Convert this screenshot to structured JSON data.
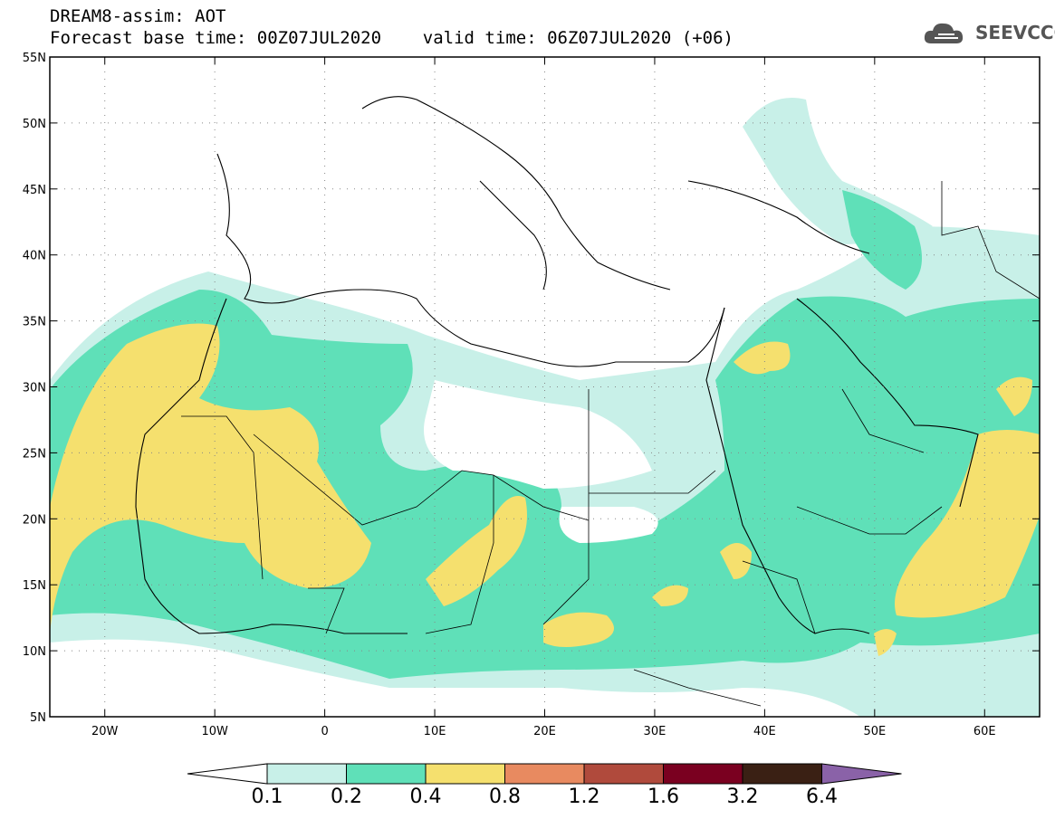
{
  "header": {
    "line1": "DREAM8-assim: AOT",
    "line2": "Forecast base time: 00Z07JUL2020    valid time: 06Z07JUL2020 (+06)"
  },
  "logo": {
    "text": "SEEVCCC",
    "icon": "cloud-icon",
    "color": "#555555"
  },
  "map": {
    "lat_ticks": [
      "55N",
      "50N",
      "45N",
      "40N",
      "35N",
      "30N",
      "25N",
      "20N",
      "15N",
      "10N",
      "5N"
    ],
    "lon_ticks": [
      "20W",
      "10W",
      "0",
      "10E",
      "20E",
      "30E",
      "40E",
      "50E",
      "60E"
    ],
    "lat_range": [
      5,
      55
    ],
    "lon_range": [
      -25,
      65
    ],
    "grid": "dotted"
  },
  "colorbar": {
    "labels": [
      "0.1",
      "0.2",
      "0.4",
      "0.8",
      "1.2",
      "1.6",
      "3.2",
      "6.4"
    ],
    "colors": [
      "#c8f0e8",
      "#5fe0b8",
      "#f5e06e",
      "#e88a60",
      "#b04a3c",
      "#7a0020",
      "#3a2014",
      "#8a62a8"
    ],
    "under_color": "#ffffff"
  }
}
